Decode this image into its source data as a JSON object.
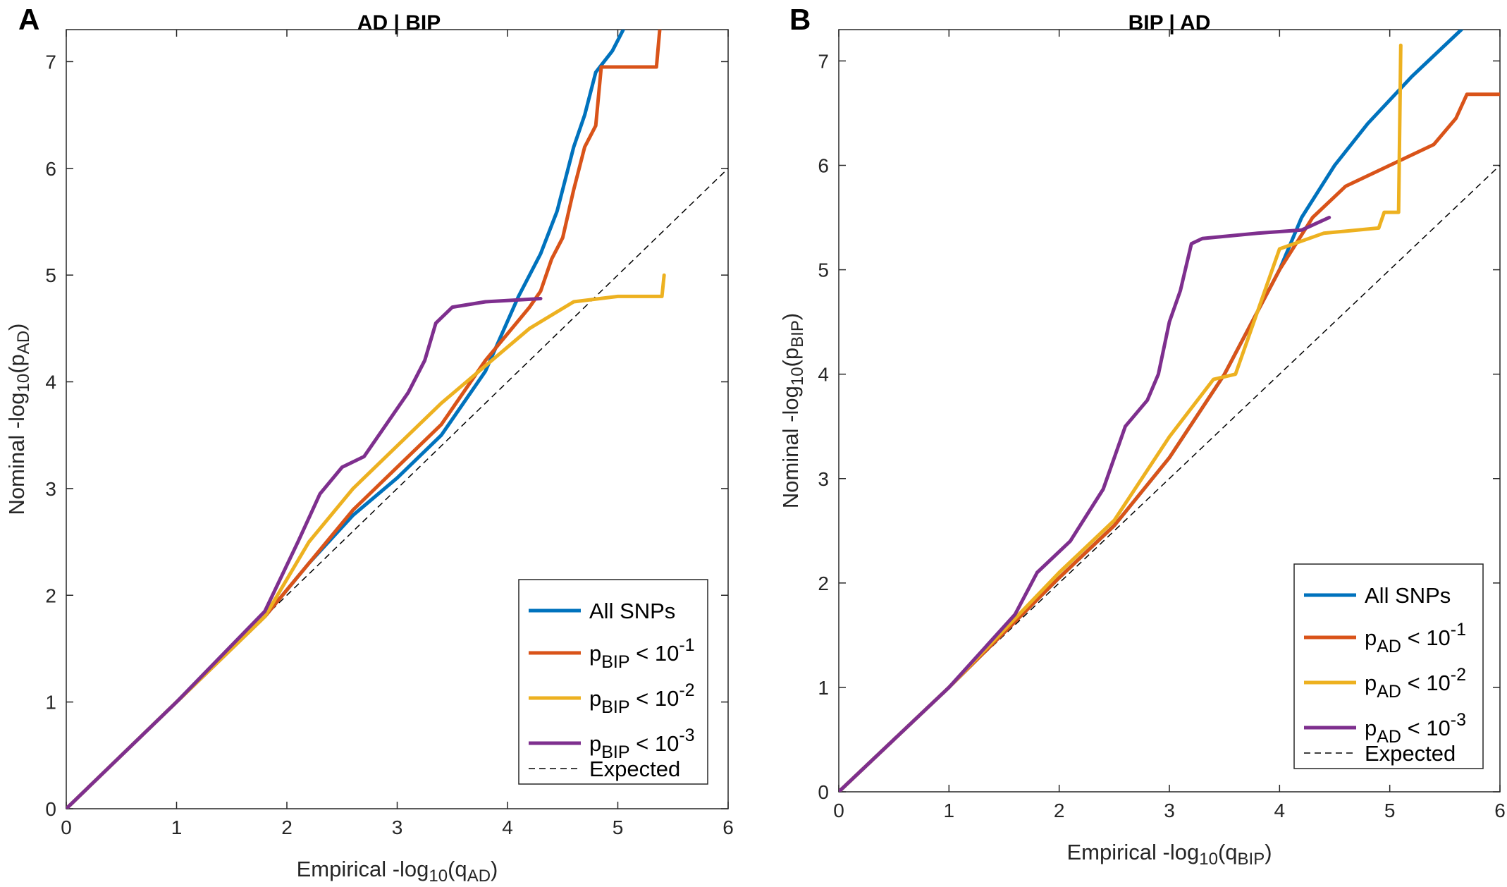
{
  "chart_data": [
    {
      "type": "line",
      "panel_label": "A",
      "title": "AD | BIP",
      "xlabel": {
        "pre": "Empirical -log",
        "base": "10",
        "mid": "(q",
        "sub": "AD",
        "post": ")"
      },
      "ylabel": {
        "pre": "Nominal -log",
        "base": "10",
        "mid": "(p",
        "sub": "AD",
        "post": ")"
      },
      "xlim": [
        0,
        6
      ],
      "ylim": [
        0,
        7.3
      ],
      "xticks": [
        "0",
        "1",
        "2",
        "3",
        "4",
        "5",
        "6"
      ],
      "yticks": [
        "0",
        "1",
        "2",
        "3",
        "4",
        "5",
        "6",
        "7"
      ],
      "legend_position": "bottom-right",
      "series": [
        {
          "name": "All SNPs",
          "color": "#0072bd",
          "legend": {
            "pre": "All SNPs"
          },
          "x": [
            0,
            1,
            1.8,
            2.2,
            2.6,
            3.0,
            3.4,
            3.8,
            4.1,
            4.3,
            4.45,
            4.6,
            4.7,
            4.8,
            4.95,
            5.05
          ],
          "y": [
            0,
            1,
            1.8,
            2.3,
            2.75,
            3.1,
            3.5,
            4.1,
            4.8,
            5.2,
            5.6,
            6.2,
            6.5,
            6.9,
            7.1,
            7.3
          ]
        },
        {
          "name": "pBIP < 10^-1",
          "color": "#d95319",
          "legend": {
            "pre": "p",
            "sub": "BIP",
            "mid": " < 10",
            "sup": "-1"
          },
          "x": [
            0,
            1,
            1.8,
            2.2,
            2.6,
            3.0,
            3.4,
            3.8,
            4.2,
            4.3,
            4.4,
            4.5,
            4.6,
            4.7,
            4.8,
            4.85,
            5.35,
            5.38
          ],
          "y": [
            0,
            1,
            1.8,
            2.3,
            2.8,
            3.2,
            3.6,
            4.2,
            4.7,
            4.85,
            5.15,
            5.35,
            5.8,
            6.2,
            6.4,
            6.95,
            6.95,
            7.3
          ]
        },
        {
          "name": "pBIP < 10^-2",
          "color": "#edb120",
          "legend": {
            "pre": "p",
            "sub": "BIP",
            "mid": " < 10",
            "sup": "-2"
          },
          "x": [
            0,
            1,
            1.8,
            2.2,
            2.6,
            3.0,
            3.4,
            3.8,
            4.2,
            4.6,
            5.0,
            5.4,
            5.42
          ],
          "y": [
            0,
            1,
            1.8,
            2.5,
            3.0,
            3.4,
            3.8,
            4.15,
            4.5,
            4.75,
            4.8,
            4.8,
            5.0
          ]
        },
        {
          "name": "pBIP < 10^-3",
          "color": "#7e2f8e",
          "legend": {
            "pre": "p",
            "sub": "BIP",
            "mid": " < 10",
            "sup": "-3"
          },
          "x": [
            0,
            1,
            1.8,
            2.1,
            2.3,
            2.5,
            2.7,
            2.9,
            3.1,
            3.25,
            3.35,
            3.5,
            3.8,
            4.3
          ],
          "y": [
            0,
            1,
            1.85,
            2.5,
            2.95,
            3.2,
            3.3,
            3.6,
            3.9,
            4.2,
            4.55,
            4.7,
            4.75,
            4.78
          ]
        }
      ],
      "expected": {
        "name": "Expected",
        "x": [
          0,
          6
        ],
        "y": [
          0,
          6
        ]
      }
    },
    {
      "type": "line",
      "panel_label": "B",
      "title": "BIP | AD",
      "xlabel": {
        "pre": "Empirical -log",
        "base": "10",
        "mid": "(q",
        "sub": "BIP",
        "post": ")"
      },
      "ylabel": {
        "pre": "Nominal -log",
        "base": "10",
        "mid": "(p",
        "sub": "BIP",
        "post": ")"
      },
      "xlim": [
        0,
        6
      ],
      "ylim": [
        0,
        7.3
      ],
      "xticks": [
        "0",
        "1",
        "2",
        "3",
        "4",
        "5",
        "6"
      ],
      "yticks": [
        "0",
        "1",
        "2",
        "3",
        "4",
        "5",
        "6",
        "7"
      ],
      "legend_position": "bottom-right",
      "series": [
        {
          "name": "All SNPs",
          "color": "#0072bd",
          "legend": {
            "pre": "All SNPs"
          },
          "x": [
            0,
            1,
            2,
            2.5,
            3.0,
            3.5,
            4.0,
            4.2,
            4.5,
            4.8,
            5.2,
            5.65
          ],
          "y": [
            0,
            1,
            2.05,
            2.55,
            3.2,
            4.0,
            5.0,
            5.5,
            6.0,
            6.4,
            6.85,
            7.3
          ]
        },
        {
          "name": "pAD < 10^-1",
          "color": "#d95319",
          "legend": {
            "pre": "p",
            "sub": "AD",
            "mid": " < 10",
            "sup": "-1"
          },
          "x": [
            0,
            1,
            2,
            2.5,
            3.0,
            3.5,
            4.0,
            4.3,
            4.6,
            5.0,
            5.4,
            5.6,
            5.7,
            6.0
          ],
          "y": [
            0,
            1,
            2.05,
            2.55,
            3.2,
            4.0,
            5.0,
            5.5,
            5.8,
            6.0,
            6.2,
            6.45,
            6.68,
            6.68
          ]
        },
        {
          "name": "pAD < 10^-2",
          "color": "#edb120",
          "legend": {
            "pre": "p",
            "sub": "AD",
            "mid": " < 10",
            "sup": "-2"
          },
          "x": [
            0,
            1,
            2,
            2.5,
            3.0,
            3.4,
            3.6,
            4.0,
            4.4,
            4.9,
            4.95,
            5.08,
            5.1
          ],
          "y": [
            0,
            1,
            2.1,
            2.6,
            3.4,
            3.95,
            4.0,
            5.2,
            5.35,
            5.4,
            5.55,
            5.55,
            7.15
          ]
        },
        {
          "name": "pAD < 10^-3",
          "color": "#7e2f8e",
          "legend": {
            "pre": "p",
            "sub": "AD",
            "mid": " < 10",
            "sup": "-3"
          },
          "x": [
            0,
            1,
            1.6,
            1.8,
            2.1,
            2.4,
            2.6,
            2.8,
            2.9,
            3.0,
            3.1,
            3.2,
            3.3,
            3.8,
            4.2,
            4.45
          ],
          "y": [
            0,
            1,
            1.7,
            2.1,
            2.4,
            2.9,
            3.5,
            3.75,
            4.0,
            4.5,
            4.8,
            5.25,
            5.3,
            5.35,
            5.38,
            5.5
          ]
        }
      ],
      "expected": {
        "name": "Expected",
        "x": [
          0,
          6
        ],
        "y": [
          0,
          6
        ]
      }
    }
  ]
}
